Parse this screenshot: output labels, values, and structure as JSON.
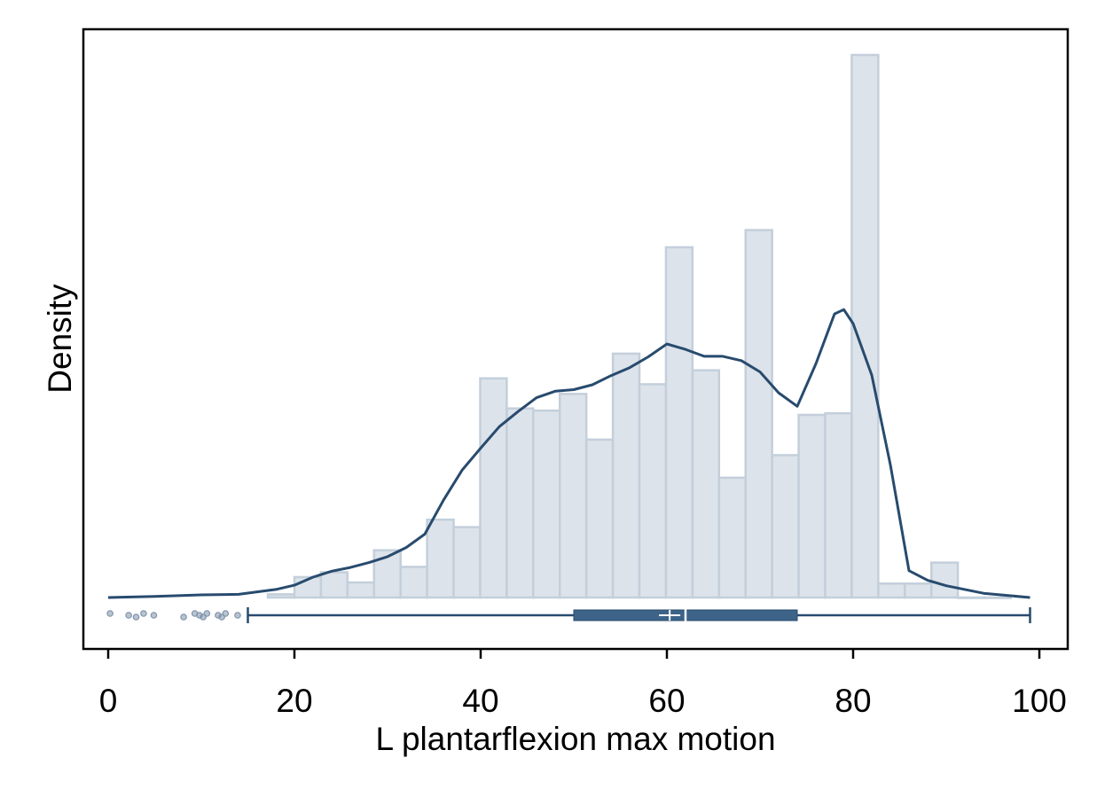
{
  "chart_data": {
    "type": "bar",
    "title": "",
    "xlabel": "L plantarflexion max motion",
    "ylabel": "Density",
    "xlim": [
      -3,
      103
    ],
    "x_ticks": [
      0,
      20,
      40,
      60,
      80,
      100
    ],
    "x_tick_labels": [
      "0",
      "20",
      "40",
      "60",
      "80",
      "100"
    ],
    "y_ticks_shown": false,
    "grid": false,
    "legend": "none",
    "colors": {
      "bar_fill": "#dde3ea",
      "bar_stroke": "#c3cfdb",
      "curve": "#284b6e",
      "box": "#3d6388",
      "outlier": "#7f93ab"
    },
    "histogram": {
      "bin_width": 2.85,
      "bins": [
        {
          "left": 17.15,
          "density": 0.0006
        },
        {
          "left": 20.0,
          "density": 0.0038
        },
        {
          "left": 22.85,
          "density": 0.0047
        },
        {
          "left": 25.7,
          "density": 0.0028
        },
        {
          "left": 28.55,
          "density": 0.0088
        },
        {
          "left": 31.4,
          "density": 0.0057
        },
        {
          "left": 34.25,
          "density": 0.0145
        },
        {
          "left": 37.1,
          "density": 0.0131
        },
        {
          "left": 39.95,
          "density": 0.0408
        },
        {
          "left": 42.8,
          "density": 0.0352
        },
        {
          "left": 45.65,
          "density": 0.0348
        },
        {
          "left": 48.5,
          "density": 0.0379
        },
        {
          "left": 51.35,
          "density": 0.0294
        },
        {
          "left": 54.2,
          "density": 0.0454
        },
        {
          "left": 57.05,
          "density": 0.0397
        },
        {
          "left": 59.9,
          "density": 0.0652
        },
        {
          "left": 62.75,
          "density": 0.0423
        },
        {
          "left": 65.6,
          "density": 0.0223
        },
        {
          "left": 68.45,
          "density": 0.0684
        },
        {
          "left": 71.3,
          "density": 0.0265
        },
        {
          "left": 74.15,
          "density": 0.034
        },
        {
          "left": 77.0,
          "density": 0.0343
        },
        {
          "left": 79.85,
          "density": 0.101
        },
        {
          "left": 82.7,
          "density": 0.0026
        },
        {
          "left": 85.55,
          "density": 0.0026
        },
        {
          "left": 88.4,
          "density": 0.0065
        },
        {
          "left": 91.25,
          "density": 0.0
        },
        {
          "left": 94.1,
          "density": 0.0
        }
      ]
    },
    "kde": {
      "x": [
        0,
        5,
        10,
        14,
        18,
        20,
        22,
        24,
        26,
        28,
        30,
        32,
        34,
        36,
        38,
        40,
        42,
        44,
        46,
        48,
        50,
        52,
        54,
        56,
        58,
        60,
        62,
        64,
        66,
        68,
        70,
        72,
        74,
        76,
        78,
        79,
        80,
        82,
        84,
        86,
        88,
        90,
        94,
        99
      ],
      "y": [
        0.0,
        0.0002,
        0.0005,
        0.0006,
        0.0015,
        0.0023,
        0.0038,
        0.0049,
        0.0056,
        0.0065,
        0.0076,
        0.0093,
        0.0118,
        0.0181,
        0.0237,
        0.0278,
        0.0318,
        0.0346,
        0.0372,
        0.0384,
        0.0387,
        0.0396,
        0.0413,
        0.0428,
        0.0448,
        0.0472,
        0.0462,
        0.0449,
        0.0449,
        0.0441,
        0.042,
        0.0381,
        0.0356,
        0.0435,
        0.0528,
        0.0536,
        0.051,
        0.0414,
        0.0247,
        0.005,
        0.0032,
        0.0022,
        0.0008,
        0.0
      ]
    },
    "box": {
      "whisker_low": 15,
      "q1": 50,
      "median": 62,
      "mean": 60.3,
      "q3": 74,
      "whisker_high": 99
    },
    "outliers": [
      0.2,
      2.2,
      3.0,
      3.8,
      4.9,
      8.1,
      9.3,
      9.8,
      10.2,
      10.6,
      11.8,
      12.2,
      12.6,
      13.9
    ]
  }
}
